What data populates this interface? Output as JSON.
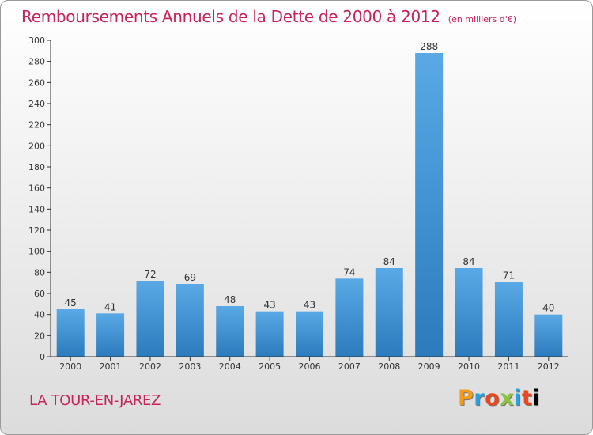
{
  "chart_data": {
    "type": "bar",
    "title": "Remboursements Annuels de la Dette de 2000 à 2012",
    "subtitle": "(en milliers d'€)",
    "categories": [
      "2000",
      "2001",
      "2002",
      "2003",
      "2004",
      "2005",
      "2006",
      "2007",
      "2008",
      "2009",
      "2010",
      "2011",
      "2012"
    ],
    "values": [
      45,
      41,
      72,
      69,
      48,
      43,
      43,
      74,
      84,
      288,
      84,
      71,
      40
    ],
    "ylim": [
      0,
      300
    ],
    "yticks": [
      0,
      20,
      40,
      60,
      80,
      100,
      120,
      140,
      160,
      180,
      200,
      220,
      240,
      260,
      280,
      300
    ],
    "grid": false,
    "legend": "none",
    "colors": {
      "bar_top": "#5aa9e6",
      "bar_bottom": "#2b7bbd",
      "accent": "#c8235a"
    }
  },
  "footer": {
    "commune": "LA TOUR-EN-JAREZ",
    "logo": "Proxiti"
  }
}
